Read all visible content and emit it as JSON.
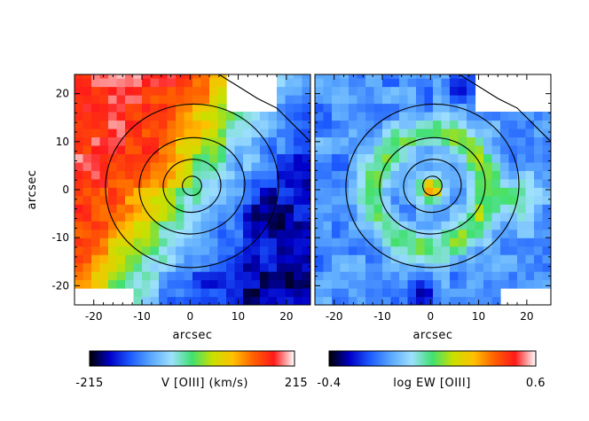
{
  "chart_data": [
    {
      "type": "heatmap",
      "title": "",
      "xlabel": "arcsec",
      "ylabel": "arcsec",
      "xlim": [
        -24,
        25
      ],
      "ylim": [
        -24,
        24
      ],
      "xticks": [
        -20,
        -10,
        0,
        10,
        20
      ],
      "yticks": [
        -20,
        -10,
        0,
        10,
        20
      ],
      "colorbar": {
        "min_label": "-215",
        "max_label": "215",
        "label": "V [OIII] (km/s)",
        "min": -215,
        "max": 215
      },
      "colormap": [
        "#000000",
        "#0000c8",
        "#1e5cff",
        "#5aa8ff",
        "#9ee0ff",
        "#40e070",
        "#c8e000",
        "#ffc000",
        "#ff6000",
        "#ff1a1a",
        "#ffffff"
      ]
    },
    {
      "type": "heatmap",
      "title": "",
      "xlabel": "arcsec",
      "ylabel": "",
      "xlim": [
        -24,
        25
      ],
      "ylim": [
        -24,
        24
      ],
      "xticks": [
        -20,
        -10,
        0,
        10,
        20
      ],
      "yticks": [
        -20,
        -10,
        0,
        10,
        20
      ],
      "colorbar": {
        "min_label": "-0.4",
        "max_label": "0.6",
        "label": "log EW [OIII]",
        "min": -0.4,
        "max": 0.6
      },
      "colormap": [
        "#000000",
        "#0000c8",
        "#1e5cff",
        "#5aa8ff",
        "#9ee0ff",
        "#40e070",
        "#c8e000",
        "#ffc000",
        "#ff6000",
        "#ff1a1a",
        "#ffffff"
      ]
    }
  ]
}
